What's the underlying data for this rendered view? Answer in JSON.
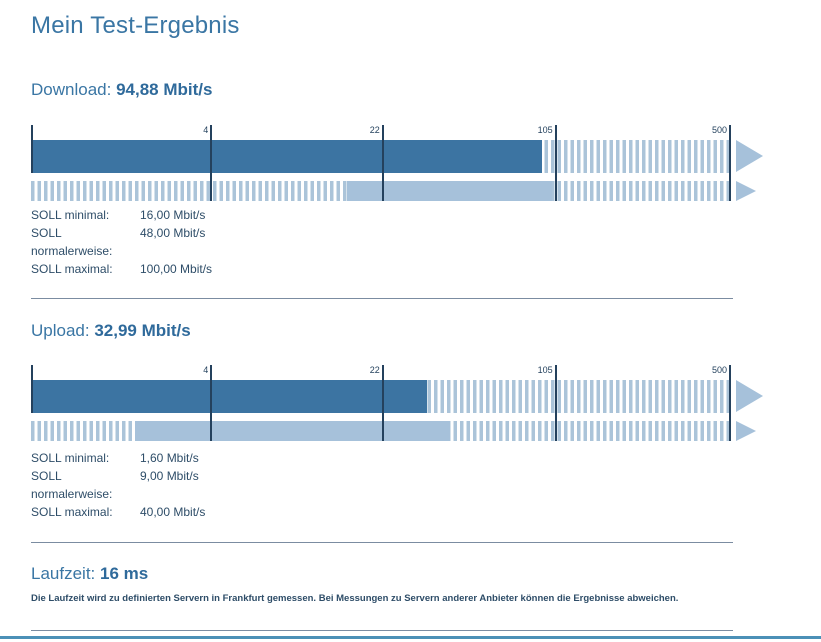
{
  "page": {
    "title": "Mein Test-Ergebnis"
  },
  "colors": {
    "accent": "#3a76a4",
    "value": "#2f6a9b",
    "dark_text": "#2e4d68",
    "bar_dark": "#3c74a2",
    "bar_light": "#a6c1da",
    "stripe": "#abc4d9",
    "axis": "#24415d",
    "divider": "#7b8ca1",
    "footer": "#4b90b7"
  },
  "soll_labels": [
    "SOLL minimal:",
    "SOLL normalerweise:",
    "SOLL maximal:"
  ],
  "sections": {
    "download": {
      "heading": "Download:",
      "value": "94,88 Mbit/s",
      "soll_values": [
        "16,00 Mbit/s",
        "48,00 Mbit/s",
        "100,00 Mbit/s"
      ]
    },
    "upload": {
      "heading": "Upload:",
      "value": "32,99 Mbit/s",
      "soll_values": [
        "1,60 Mbit/s",
        "9,00 Mbit/s",
        "40,00 Mbit/s"
      ]
    },
    "latency": {
      "heading": "Laufzeit:",
      "value": "16 ms",
      "note": "Die Laufzeit wird zu definierten Servern in Frankfurt gemessen. Bei Messungen zu Servern anderer Anbieter können die Ergebnisse abweichen."
    }
  },
  "chart_data": [
    {
      "id": "download",
      "type": "bar",
      "orientation": "horizontal",
      "title": "Download",
      "unit": "Mbit/s",
      "scale": "logarithmic",
      "scale_ticks": [
        4,
        22,
        105,
        500
      ],
      "tick_percents": [
        25.9,
        50.4,
        75.1,
        100
      ],
      "measured": 94.88,
      "measured_percent": 73.0,
      "soll": {
        "minimal": 16.0,
        "normalerweise": 48.0,
        "maximal": 100.0
      },
      "soll_band_percent": [
        45.2,
        74.4
      ],
      "legend": "top bar = measured value (solid), bottom bar = contracted SOLL range (solid band)"
    },
    {
      "id": "upload",
      "type": "bar",
      "orientation": "horizontal",
      "title": "Upload",
      "unit": "Mbit/s",
      "scale": "logarithmic",
      "scale_ticks": [
        4,
        22,
        105,
        500
      ],
      "tick_percents": [
        25.9,
        50.4,
        75.1,
        100
      ],
      "measured": 32.99,
      "measured_percent": 56.6,
      "soll": {
        "minimal": 1.6,
        "normalerweise": 9.0,
        "maximal": 40.0
      },
      "soll_band_percent": [
        14.9,
        59.9
      ],
      "legend": "top bar = measured value (solid), bottom bar = contracted SOLL range (solid band)"
    }
  ]
}
